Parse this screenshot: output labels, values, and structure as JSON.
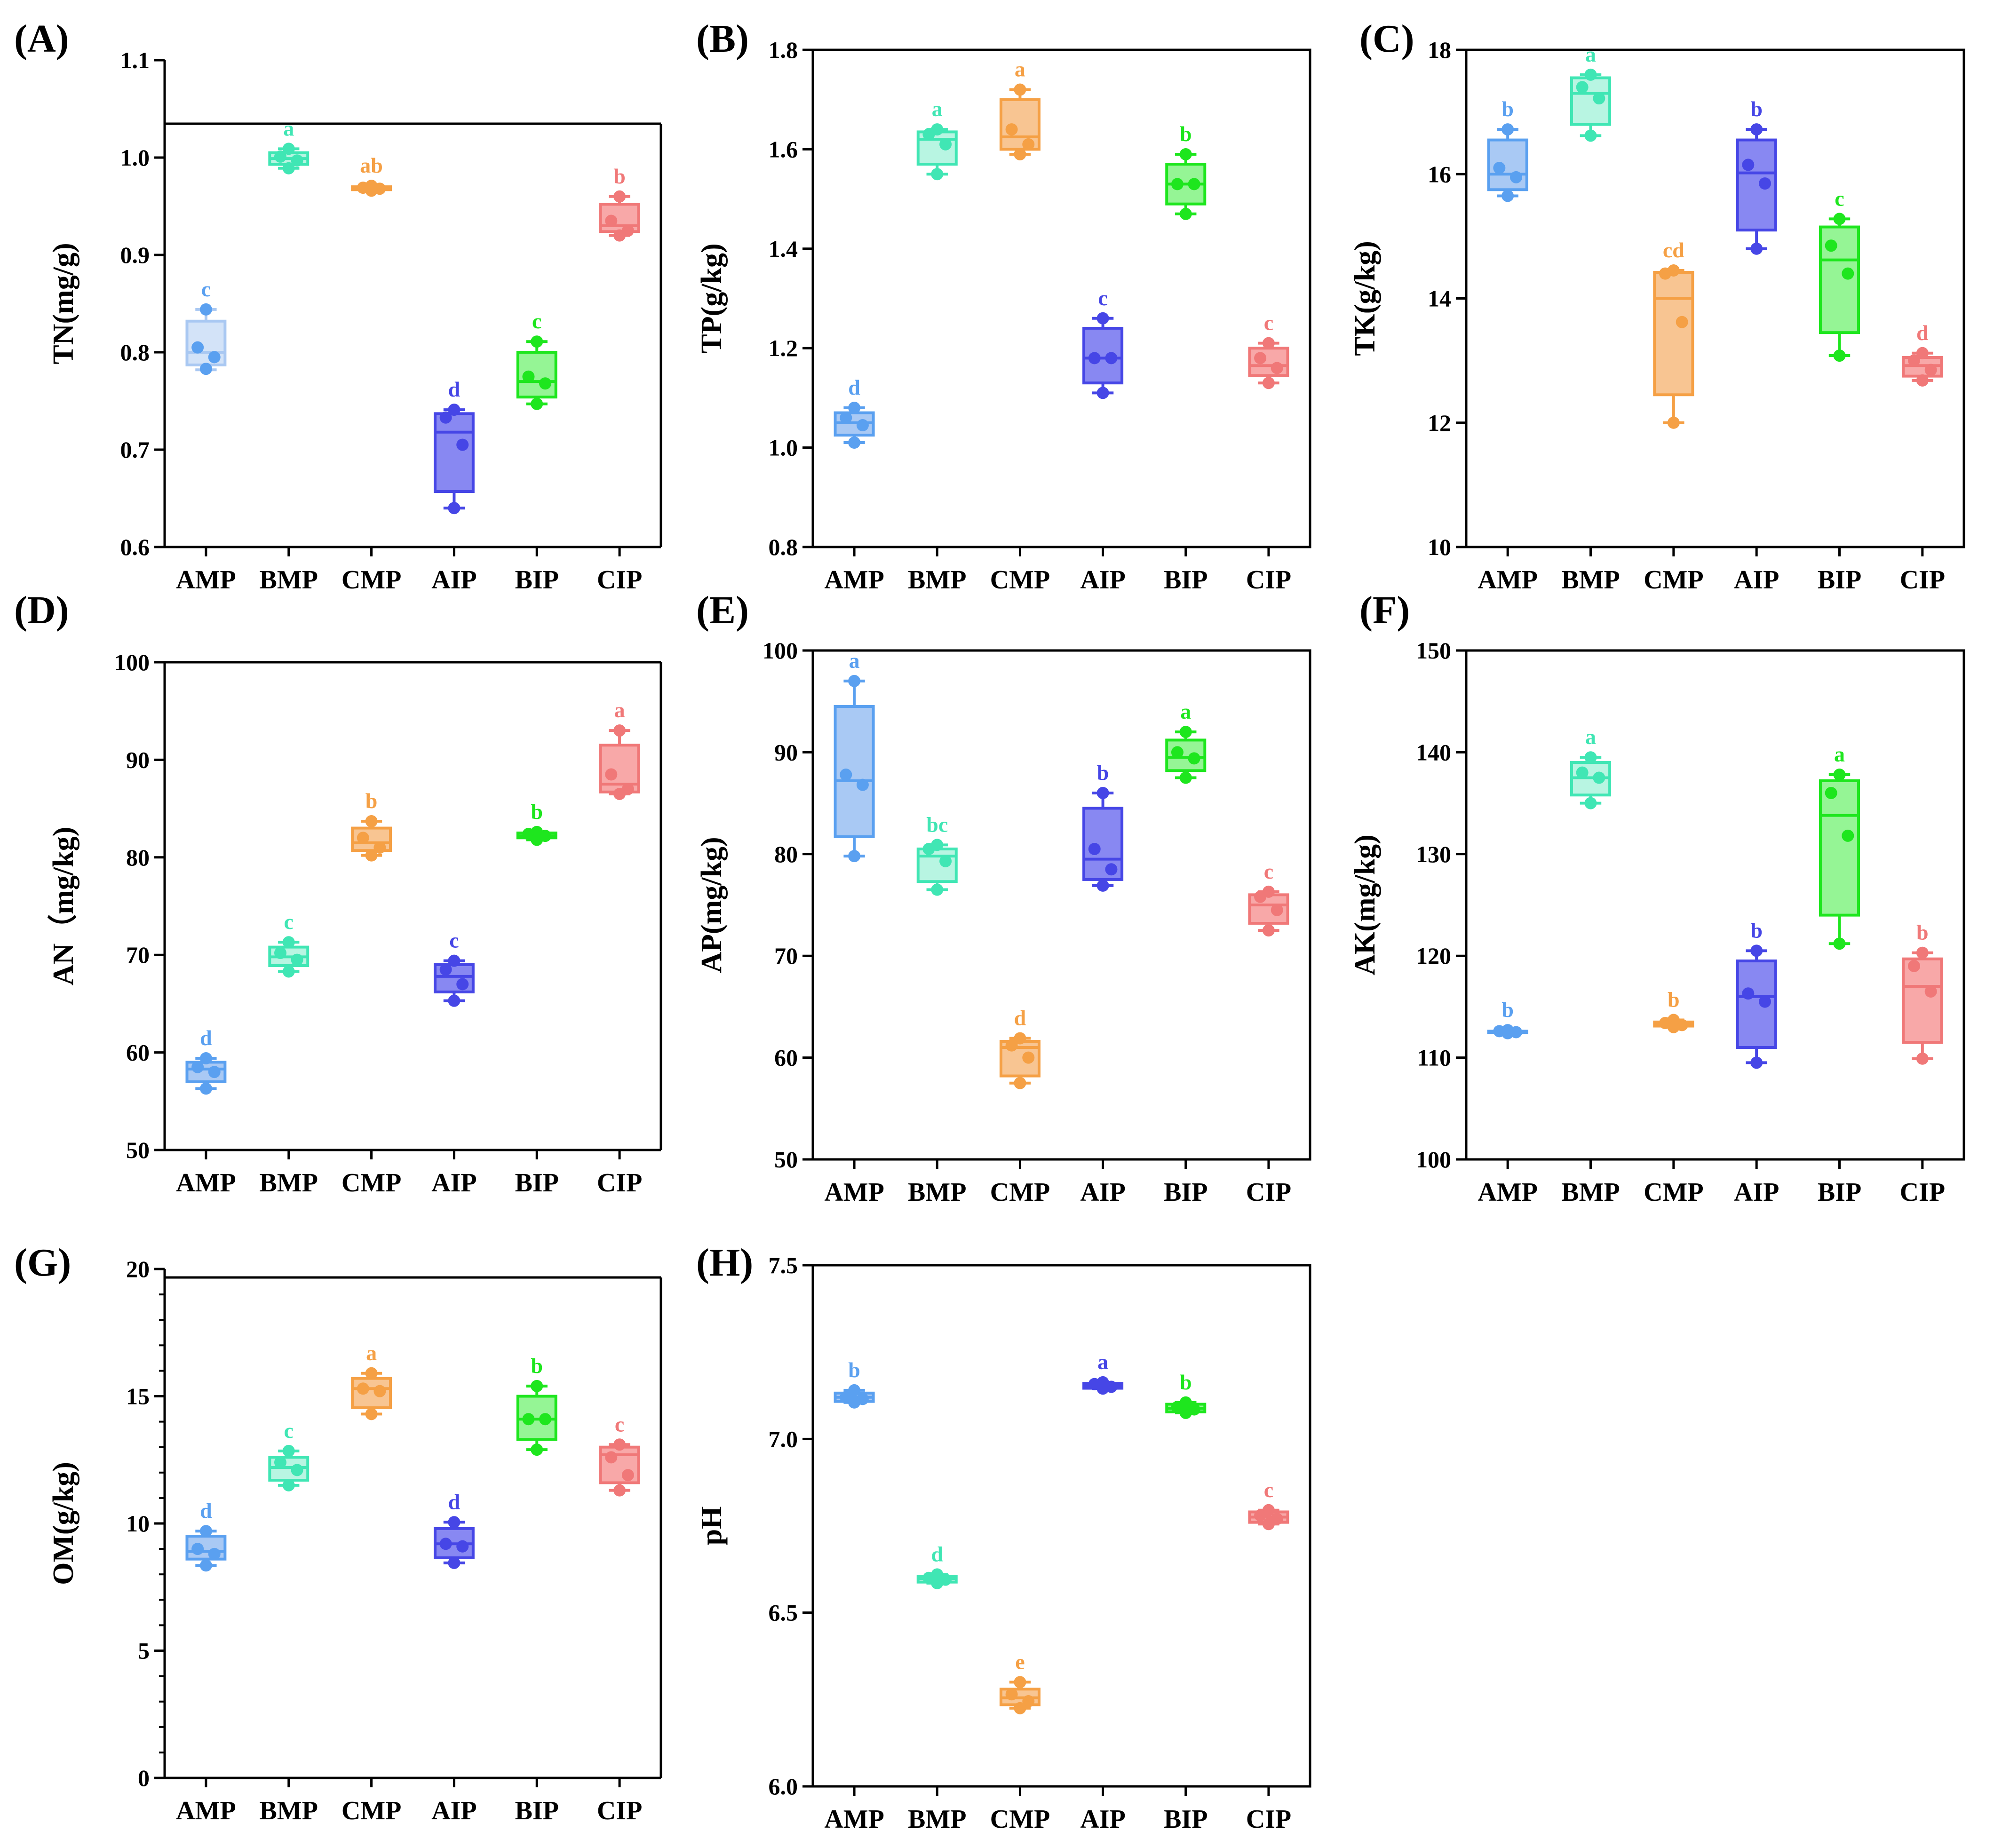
{
  "chart_data": [
    {
      "id": "A",
      "panel_label": "(A)",
      "ylabel": "TN(mg/g)",
      "ylim": [
        0.6,
        1.1
      ],
      "ticks": [
        0.6,
        0.7,
        0.8,
        0.9,
        1.0,
        1.1
      ],
      "tick_labels": [
        "0.6",
        "0.7",
        "0.8",
        "0.9",
        "1.0",
        "1.1"
      ],
      "minor_ticks": 0,
      "type": "box",
      "categories": [
        "AMP",
        "BMP",
        "CMP",
        "AIP",
        "BIP",
        "CIP"
      ],
      "boxes": [
        {
          "min": 0.782,
          "q1": 0.787,
          "median": 0.8,
          "q3": 0.832,
          "max": 0.844,
          "points": [
            0.844,
            0.805,
            0.795,
            0.783
          ],
          "letter": "c"
        },
        {
          "min": 0.989,
          "q1": 0.993,
          "median": 0.999,
          "q3": 1.005,
          "max": 1.009,
          "points": [
            1.009,
            1.001,
            0.997,
            0.989
          ],
          "letter": "a"
        },
        {
          "min": 0.966,
          "q1": 0.967,
          "median": 0.968,
          "q3": 0.97,
          "max": 0.971,
          "points": [
            0.971,
            0.969,
            0.968,
            0.966
          ],
          "letter": "ab"
        },
        {
          "min": 0.64,
          "q1": 0.657,
          "median": 0.718,
          "q3": 0.737,
          "max": 0.741,
          "points": [
            0.741,
            0.733,
            0.705,
            0.64
          ],
          "letter": "d"
        },
        {
          "min": 0.747,
          "q1": 0.754,
          "median": 0.77,
          "q3": 0.8,
          "max": 0.811,
          "points": [
            0.811,
            0.775,
            0.768,
            0.747
          ],
          "letter": "c"
        },
        {
          "min": 0.92,
          "q1": 0.924,
          "median": 0.93,
          "q3": 0.952,
          "max": 0.96,
          "points": [
            0.96,
            0.935,
            0.925,
            0.92
          ],
          "letter": "b"
        }
      ]
    },
    {
      "id": "B",
      "panel_label": "(B)",
      "ylabel": "TP(g/kg)",
      "ylim": [
        0.8,
        1.8
      ],
      "ticks": [
        0.8,
        1.0,
        1.2,
        1.4,
        1.6,
        1.8
      ],
      "tick_labels": [
        "0.8",
        "1.0",
        "1.2",
        "1.4",
        "1.6",
        "1.8"
      ],
      "minor_ticks": 0,
      "type": "box",
      "categories": [
        "AMP",
        "BMP",
        "CMP",
        "AIP",
        "BIP",
        "CIP"
      ],
      "boxes": [
        {
          "min": 1.01,
          "q1": 1.025,
          "median": 1.05,
          "q3": 1.07,
          "max": 1.08,
          "points": [
            1.08,
            1.06,
            1.045,
            1.01
          ],
          "letter": "d"
        },
        {
          "min": 1.55,
          "q1": 1.57,
          "median": 1.62,
          "q3": 1.635,
          "max": 1.64,
          "points": [
            1.64,
            1.63,
            1.61,
            1.55
          ],
          "letter": "a"
        },
        {
          "min": 1.59,
          "q1": 1.6,
          "median": 1.625,
          "q3": 1.7,
          "max": 1.72,
          "points": [
            1.72,
            1.64,
            1.61,
            1.59
          ],
          "letter": "a"
        },
        {
          "min": 1.11,
          "q1": 1.13,
          "median": 1.18,
          "q3": 1.24,
          "max": 1.26,
          "points": [
            1.26,
            1.18,
            1.18,
            1.11
          ],
          "letter": "c"
        },
        {
          "min": 1.47,
          "q1": 1.49,
          "median": 1.53,
          "q3": 1.57,
          "max": 1.59,
          "points": [
            1.59,
            1.53,
            1.53,
            1.47
          ],
          "letter": "b"
        },
        {
          "min": 1.13,
          "q1": 1.145,
          "median": 1.165,
          "q3": 1.2,
          "max": 1.21,
          "points": [
            1.21,
            1.18,
            1.16,
            1.13
          ],
          "letter": "c"
        }
      ]
    },
    {
      "id": "C",
      "panel_label": "(C)",
      "ylabel": "TK(g/kg)",
      "ylim": [
        10,
        18
      ],
      "ticks": [
        10,
        12,
        14,
        16,
        18
      ],
      "tick_labels": [
        "10",
        "12",
        "14",
        "16",
        "18"
      ],
      "minor_ticks": 0,
      "type": "box",
      "categories": [
        "AMP",
        "BMP",
        "CMP",
        "AIP",
        "BIP",
        "CIP"
      ],
      "boxes": [
        {
          "min": 15.65,
          "q1": 15.75,
          "median": 16.0,
          "q3": 16.55,
          "max": 16.72,
          "points": [
            16.72,
            16.1,
            15.95,
            15.65
          ],
          "letter": "b"
        },
        {
          "min": 16.62,
          "q1": 16.8,
          "median": 17.3,
          "q3": 17.55,
          "max": 17.6,
          "points": [
            17.6,
            17.4,
            17.22,
            16.62
          ],
          "letter": "a"
        },
        {
          "min": 12.0,
          "q1": 12.45,
          "median": 14.0,
          "q3": 14.42,
          "max": 14.45,
          "points": [
            14.45,
            14.4,
            13.62,
            12.0
          ],
          "letter": "cd"
        },
        {
          "min": 14.8,
          "q1": 15.1,
          "median": 16.02,
          "q3": 16.55,
          "max": 16.72,
          "points": [
            16.72,
            16.15,
            15.85,
            14.8
          ],
          "letter": "b"
        },
        {
          "min": 13.08,
          "q1": 13.45,
          "median": 14.62,
          "q3": 15.15,
          "max": 15.28,
          "points": [
            15.28,
            14.85,
            14.4,
            13.08
          ],
          "letter": "c"
        },
        {
          "min": 12.68,
          "q1": 12.75,
          "median": 12.92,
          "q3": 13.05,
          "max": 13.12,
          "points": [
            13.12,
            13.0,
            12.85,
            12.68
          ],
          "letter": "d"
        }
      ]
    },
    {
      "id": "D",
      "panel_label": "(D)",
      "ylabel": "AN（mg/kg)",
      "ylim": [
        50,
        100
      ],
      "ticks": [
        50,
        60,
        70,
        80,
        90,
        100
      ],
      "tick_labels": [
        "50",
        "60",
        "70",
        "80",
        "90",
        "100"
      ],
      "minor_ticks": 0,
      "type": "box",
      "categories": [
        "AMP",
        "BMP",
        "CMP",
        "AIP",
        "BIP",
        "CIP"
      ],
      "boxes": [
        {
          "min": 56.3,
          "q1": 57.0,
          "median": 58.3,
          "q3": 59.0,
          "max": 59.4,
          "points": [
            59.4,
            58.5,
            58.0,
            56.3
          ],
          "letter": "d"
        },
        {
          "min": 68.3,
          "q1": 68.9,
          "median": 69.8,
          "q3": 70.8,
          "max": 71.3,
          "points": [
            71.3,
            70.2,
            69.5,
            68.3
          ],
          "letter": "c"
        },
        {
          "min": 80.2,
          "q1": 80.7,
          "median": 81.5,
          "q3": 83.0,
          "max": 83.7,
          "points": [
            83.7,
            82.0,
            81.0,
            80.2
          ],
          "letter": "b"
        },
        {
          "min": 65.3,
          "q1": 66.2,
          "median": 67.8,
          "q3": 69.0,
          "max": 69.4,
          "points": [
            69.4,
            68.5,
            67.0,
            65.3
          ],
          "letter": "c"
        },
        {
          "min": 81.8,
          "q1": 82.0,
          "median": 82.2,
          "q3": 82.5,
          "max": 82.6,
          "points": [
            82.6,
            82.4,
            82.2,
            81.8
          ],
          "letter": "b"
        },
        {
          "min": 86.5,
          "q1": 86.7,
          "median": 87.5,
          "q3": 91.5,
          "max": 93.0,
          "points": [
            93.0,
            88.5,
            87.0,
            86.5
          ],
          "letter": "a"
        }
      ]
    },
    {
      "id": "E",
      "panel_label": "(E)",
      "ylabel": "AP(mg/kg)",
      "ylim": [
        50,
        100
      ],
      "ticks": [
        50,
        60,
        70,
        80,
        90,
        100
      ],
      "tick_labels": [
        "50",
        "60",
        "70",
        "80",
        "90",
        "100"
      ],
      "minor_ticks": 0,
      "type": "box",
      "categories": [
        "AMP",
        "BMP",
        "CMP",
        "AIP",
        "BIP",
        "CIP"
      ],
      "boxes": [
        {
          "min": 79.8,
          "q1": 81.7,
          "median": 87.2,
          "q3": 94.5,
          "max": 97.0,
          "points": [
            97.0,
            87.8,
            86.8,
            79.8
          ],
          "letter": "a"
        },
        {
          "min": 76.5,
          "q1": 77.3,
          "median": 79.8,
          "q3": 80.5,
          "max": 80.9,
          "points": [
            80.9,
            80.5,
            79.3,
            76.5
          ],
          "letter": "bc"
        },
        {
          "min": 57.5,
          "q1": 58.2,
          "median": 61.0,
          "q3": 61.6,
          "max": 61.9,
          "points": [
            61.9,
            61.2,
            60.0,
            57.5
          ],
          "letter": "d"
        },
        {
          "min": 76.9,
          "q1": 77.5,
          "median": 79.5,
          "q3": 84.5,
          "max": 86.0,
          "points": [
            86.0,
            80.5,
            78.5,
            76.9
          ],
          "letter": "b"
        },
        {
          "min": 87.5,
          "q1": 88.2,
          "median": 89.5,
          "q3": 91.2,
          "max": 92.0,
          "points": [
            92.0,
            90.0,
            89.4,
            87.5
          ],
          "letter": "a"
        },
        {
          "min": 72.5,
          "q1": 73.2,
          "median": 75.0,
          "q3": 76.0,
          "max": 76.3,
          "points": [
            76.3,
            75.8,
            74.5,
            72.5
          ],
          "letter": "c"
        }
      ]
    },
    {
      "id": "F",
      "panel_label": "(F)",
      "ylabel": "AK(mg/kg)",
      "ylim": [
        100,
        150
      ],
      "ticks": [
        100,
        110,
        120,
        130,
        140,
        150
      ],
      "tick_labels": [
        "100",
        "110",
        "120",
        "130",
        "140",
        "150"
      ],
      "minor_ticks": 0,
      "type": "box",
      "categories": [
        "AMP",
        "BMP",
        "CMP",
        "AIP",
        "BIP",
        "CIP"
      ],
      "boxes": [
        {
          "min": 112.4,
          "q1": 112.5,
          "median": 112.5,
          "q3": 112.6,
          "max": 112.7,
          "points": [
            112.7,
            112.6,
            112.5,
            112.4
          ],
          "letter": "b"
        },
        {
          "min": 135.0,
          "q1": 135.8,
          "median": 137.5,
          "q3": 139.0,
          "max": 139.5,
          "points": [
            139.5,
            138.0,
            137.5,
            135.0
          ],
          "letter": "a"
        },
        {
          "min": 113.0,
          "q1": 113.1,
          "median": 113.3,
          "q3": 113.5,
          "max": 113.7,
          "points": [
            113.7,
            113.4,
            113.2,
            113.0
          ],
          "letter": "b"
        },
        {
          "min": 109.5,
          "q1": 111.0,
          "median": 116.0,
          "q3": 119.5,
          "max": 120.5,
          "points": [
            120.5,
            116.3,
            115.5,
            109.5
          ],
          "letter": "b"
        },
        {
          "min": 121.2,
          "q1": 124.0,
          "median": 133.8,
          "q3": 137.2,
          "max": 137.8,
          "points": [
            137.8,
            136.0,
            131.8,
            121.2
          ],
          "letter": "a"
        },
        {
          "min": 109.9,
          "q1": 111.5,
          "median": 117.0,
          "q3": 119.7,
          "max": 120.3,
          "points": [
            120.3,
            119.0,
            116.5,
            109.9
          ],
          "letter": "b"
        }
      ]
    },
    {
      "id": "G",
      "panel_label": "(G)",
      "ylabel": "OM(g/kg)",
      "ylim": [
        0,
        20
      ],
      "ticks": [
        0,
        5,
        10,
        15,
        20
      ],
      "tick_labels": [
        "0",
        "5",
        "10",
        "15",
        "20"
      ],
      "minor_ticks": 4,
      "type": "box",
      "categories": [
        "AMP",
        "BMP",
        "CMP",
        "AIP",
        "BIP",
        "CIP"
      ],
      "boxes": [
        {
          "min": 8.35,
          "q1": 8.6,
          "median": 8.9,
          "q3": 9.5,
          "max": 9.7,
          "points": [
            9.7,
            9.0,
            8.8,
            8.35
          ],
          "letter": "d"
        },
        {
          "min": 11.5,
          "q1": 11.7,
          "median": 12.2,
          "q3": 12.6,
          "max": 12.85,
          "points": [
            12.85,
            12.4,
            12.1,
            11.5
          ],
          "letter": "c"
        },
        {
          "min": 14.3,
          "q1": 14.55,
          "median": 15.3,
          "q3": 15.7,
          "max": 15.9,
          "points": [
            15.9,
            15.3,
            15.2,
            14.3
          ],
          "letter": "a"
        },
        {
          "min": 8.45,
          "q1": 8.65,
          "median": 9.2,
          "q3": 9.8,
          "max": 10.05,
          "points": [
            10.05,
            9.2,
            9.1,
            8.45
          ],
          "letter": "d"
        },
        {
          "min": 12.9,
          "q1": 13.3,
          "median": 14.1,
          "q3": 15.0,
          "max": 15.4,
          "points": [
            15.4,
            14.1,
            14.1,
            12.9
          ],
          "letter": "b"
        },
        {
          "min": 11.3,
          "q1": 11.6,
          "median": 12.7,
          "q3": 13.0,
          "max": 13.1,
          "points": [
            13.1,
            12.6,
            11.9,
            11.3
          ],
          "letter": "c"
        }
      ]
    },
    {
      "id": "H",
      "panel_label": "(H)",
      "ylabel": "pH",
      "ylim": [
        6.0,
        7.5
      ],
      "ticks": [
        6.0,
        6.5,
        7.0,
        7.5
      ],
      "tick_labels": [
        "6.0",
        "6.5",
        "7.0",
        "7.5"
      ],
      "minor_ticks": 0,
      "type": "box",
      "categories": [
        "AMP",
        "BMP",
        "CMP",
        "AIP",
        "BIP",
        "CIP"
      ],
      "boxes": [
        {
          "min": 7.105,
          "q1": 7.108,
          "median": 7.12,
          "q3": 7.132,
          "max": 7.14,
          "points": [
            7.14,
            7.12,
            7.115,
            7.105
          ],
          "letter": "b"
        },
        {
          "min": 6.585,
          "q1": 6.588,
          "median": 6.598,
          "q3": 6.605,
          "max": 6.61,
          "points": [
            6.61,
            6.6,
            6.595,
            6.585
          ],
          "letter": "d"
        },
        {
          "min": 6.225,
          "q1": 6.235,
          "median": 6.255,
          "q3": 6.28,
          "max": 6.3,
          "points": [
            6.3,
            6.265,
            6.245,
            6.225
          ],
          "letter": "e"
        },
        {
          "min": 7.145,
          "q1": 7.146,
          "median": 7.152,
          "q3": 7.16,
          "max": 7.163,
          "points": [
            7.163,
            7.158,
            7.15,
            7.145
          ],
          "letter": "a"
        },
        {
          "min": 7.075,
          "q1": 7.078,
          "median": 7.088,
          "q3": 7.1,
          "max": 7.105,
          "points": [
            7.105,
            7.092,
            7.085,
            7.075
          ],
          "letter": "b"
        },
        {
          "min": 6.755,
          "q1": 6.76,
          "median": 6.775,
          "q3": 6.79,
          "max": 6.795,
          "points": [
            6.795,
            6.78,
            6.77,
            6.755
          ],
          "letter": "c"
        }
      ]
    }
  ],
  "palette": {
    "AMP": {
      "fill": "#a9c9f4",
      "stroke": "#5aa0f0",
      "point": "#5aa0f0",
      "label": "#5aa0f0"
    },
    "BMP": {
      "fill": "#b8f5e2",
      "stroke": "#40e6b4",
      "point": "#40e6b4",
      "label": "#40e6b4"
    },
    "CMP": {
      "fill": "#f8c592",
      "stroke": "#f5a045",
      "point": "#f5a045",
      "label": "#f5a045"
    },
    "AIP": {
      "fill": "#8888f2",
      "stroke": "#4646e6",
      "point": "#4646e6",
      "label": "#4646e6"
    },
    "BIP": {
      "fill": "#95f595",
      "stroke": "#1ee61e",
      "point": "#1ee61e",
      "label": "#1ee61e"
    },
    "CIP": {
      "fill": "#f8a8a8",
      "stroke": "#f07878",
      "point": "#f07878",
      "label": "#f07878"
    }
  },
  "palette_overrides": {
    "A_AMP": {
      "fill": "#d3e3f8",
      "stroke": "#a9c8f2",
      "point": "#5aa0f0",
      "label": "#5aa0f0"
    }
  }
}
